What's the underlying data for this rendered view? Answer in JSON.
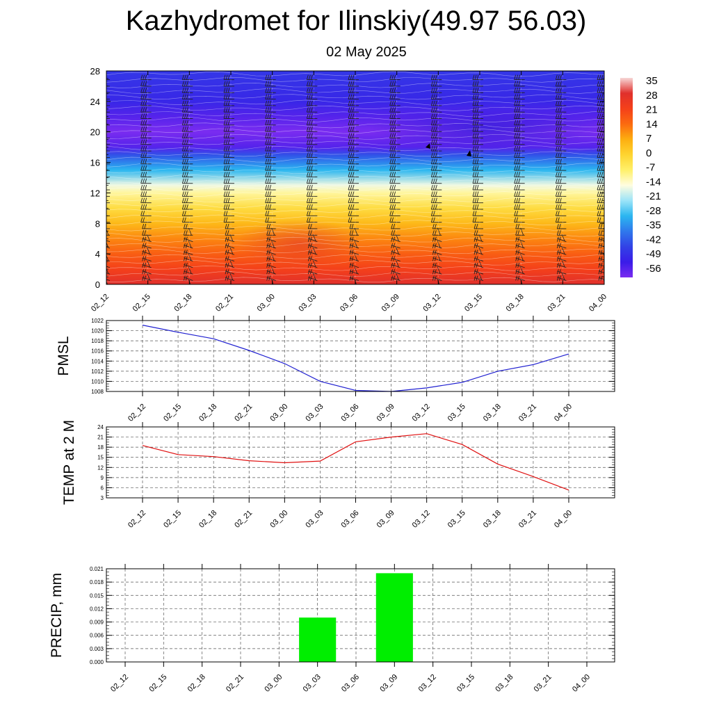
{
  "title": "Kazhydromet for Ilinskiy(49.97 56.03)",
  "subtitle": "02 May 2025",
  "chart_data": [
    {
      "type": "heatmap",
      "name": "vertical-section",
      "x": [
        "02_12",
        "02_15",
        "02_18",
        "02_21",
        "03_00",
        "03_03",
        "03_06",
        "03_09",
        "03_12",
        "03_15",
        "03_18",
        "03_21",
        "04_00"
      ],
      "y_ticks": [
        0,
        4,
        8,
        12,
        16,
        20,
        24,
        28
      ],
      "ylim": [
        0,
        28
      ],
      "colorbar_labels": [
        "35",
        "28",
        "21",
        "14",
        "7",
        "0",
        "-7",
        "-14",
        "-21",
        "-28",
        "-35",
        "-42",
        "-49",
        "-56"
      ],
      "colorscale": [
        {
          "value": 35,
          "color": "#f7d6d6"
        },
        {
          "value": 28,
          "color": "#e0302c"
        },
        {
          "value": 21,
          "color": "#f4401a"
        },
        {
          "value": 14,
          "color": "#fb6a10"
        },
        {
          "value": 7,
          "color": "#fdae10"
        },
        {
          "value": 0,
          "color": "#fed430"
        },
        {
          "value": -7,
          "color": "#fff06a"
        },
        {
          "value": -14,
          "color": "#fffde0"
        },
        {
          "value": -21,
          "color": "#9ce4f8"
        },
        {
          "value": -28,
          "color": "#2bb6f0"
        },
        {
          "value": -35,
          "color": "#2f78ec"
        },
        {
          "value": -42,
          "color": "#3242e6"
        },
        {
          "value": -49,
          "color": "#3a1ce8"
        },
        {
          "value": -56,
          "color": "#7a2cf0"
        }
      ],
      "temperature_profile": [
        {
          "h": 0,
          "t": 28
        },
        {
          "h": 2,
          "t": 21
        },
        {
          "h": 4,
          "t": 16
        },
        {
          "h": 6,
          "t": 11
        },
        {
          "h": 8,
          "t": 5
        },
        {
          "h": 10,
          "t": -2
        },
        {
          "h": 12,
          "t": -10
        },
        {
          "h": 13,
          "t": -15
        },
        {
          "h": 15,
          "t": -28
        },
        {
          "h": 17,
          "t": -40
        },
        {
          "h": 18,
          "t": -52
        },
        {
          "h": 20,
          "t": -56
        },
        {
          "h": 22,
          "t": -52
        },
        {
          "h": 24,
          "t": -47
        },
        {
          "h": 28,
          "t": -44
        }
      ],
      "grid": true
    },
    {
      "type": "line",
      "name": "pmsl",
      "ylabel": "PMSL",
      "x": [
        "02_12",
        "02_15",
        "02_18",
        "02_21",
        "03_00",
        "03_03",
        "03_06",
        "03_09",
        "03_12",
        "03_15",
        "03_18",
        "03_21",
        "04_00"
      ],
      "values": [
        1021.1,
        1019.7,
        1018.4,
        1016.1,
        1013.5,
        1010.0,
        1008.2,
        1008.0,
        1008.7,
        1009.8,
        1012.0,
        1013.3,
        1015.4
      ],
      "ylim": [
        1008,
        1022
      ],
      "y_ticks": [
        1008,
        1010,
        1012,
        1014,
        1016,
        1018,
        1020,
        1022
      ],
      "color": "#1f1fd0",
      "grid": true
    },
    {
      "type": "line",
      "name": "temp-2m",
      "ylabel": "TEMP at 2 M",
      "x": [
        "02_12",
        "02_15",
        "02_18",
        "02_21",
        "03_00",
        "03_03",
        "03_06",
        "03_09",
        "03_12",
        "03_15",
        "03_18",
        "03_21",
        "04_00"
      ],
      "values": [
        18.5,
        15.8,
        15.2,
        14.0,
        13.4,
        13.9,
        19.6,
        21.0,
        22.0,
        18.8,
        13.0,
        9.3,
        5.3
      ],
      "ylim": [
        3,
        24
      ],
      "y_ticks": [
        3,
        6,
        9,
        12,
        15,
        18,
        21,
        24
      ],
      "color": "#e01010",
      "grid": true
    },
    {
      "type": "bar",
      "name": "precip",
      "ylabel": "PRECIP, mm",
      "categories": [
        "02_12",
        "02_15",
        "02_18",
        "02_21",
        "03_00",
        "03_03",
        "03_06",
        "03_09",
        "03_12",
        "03_15",
        "03_18",
        "03_21",
        "04_00"
      ],
      "values": [
        0,
        0,
        0,
        0,
        0,
        0.01,
        0,
        0.02,
        0,
        0,
        0,
        0,
        0
      ],
      "ylim": [
        0,
        0.021
      ],
      "y_ticks": [
        "0.000",
        "0.003",
        "0.006",
        "0.009",
        "0.012",
        "0.015",
        "0.018",
        "0.021"
      ],
      "color": "#00ee00",
      "grid": true
    }
  ]
}
